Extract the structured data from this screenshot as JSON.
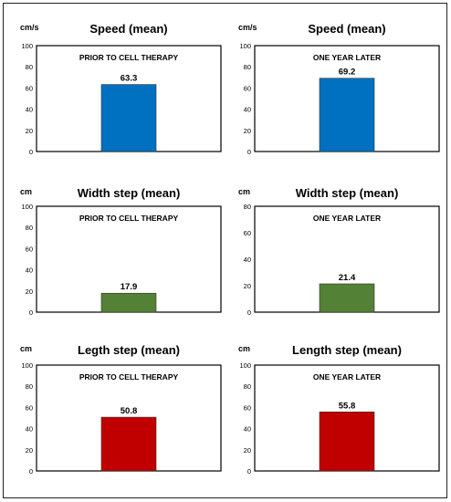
{
  "chart_data": [
    {
      "type": "bar",
      "title": "Speed (mean)",
      "unit": "cm/s",
      "subtitle": "PRIOR TO CELL THERAPY",
      "values": [
        63.3
      ],
      "labels": [
        "63.3"
      ],
      "ylim": [
        0,
        100
      ],
      "ticks": [
        0,
        20,
        40,
        60,
        80,
        100
      ],
      "color": "#0070C0"
    },
    {
      "type": "bar",
      "title": "Speed (mean)",
      "unit": "cm/s",
      "subtitle": "ONE YEAR LATER",
      "values": [
        69.2
      ],
      "labels": [
        "69.2"
      ],
      "ylim": [
        0,
        100
      ],
      "ticks": [
        0,
        20,
        40,
        60,
        80,
        100
      ],
      "color": "#0070C0"
    },
    {
      "type": "bar",
      "title": "Width step (mean)",
      "unit": "cm",
      "subtitle": "PRIOR TO CELL THERAPY",
      "values": [
        17.9
      ],
      "labels": [
        "17.9"
      ],
      "ylim": [
        0,
        100
      ],
      "ticks": [
        0,
        20,
        40,
        60,
        80,
        100
      ],
      "color": "#538135"
    },
    {
      "type": "bar",
      "title": "Width step (mean)",
      "unit": "cm",
      "subtitle": "ONE YEAR LATER",
      "values": [
        21.4
      ],
      "labels": [
        "21.4"
      ],
      "ylim": [
        0,
        80
      ],
      "ticks": [
        0,
        20,
        40,
        60,
        80
      ],
      "color": "#538135"
    },
    {
      "type": "bar",
      "title": "Legth step (mean)",
      "unit": "cm",
      "subtitle": "PRIOR TO CELL THERAPY",
      "values": [
        50.8
      ],
      "labels": [
        "50.8"
      ],
      "ylim": [
        0,
        100
      ],
      "ticks": [
        0,
        20,
        40,
        60,
        80,
        100
      ],
      "color": "#C00000"
    },
    {
      "type": "bar",
      "title": "Length step (mean)",
      "unit": "cm",
      "subtitle": "ONE YEAR LATER",
      "values": [
        55.8
      ],
      "labels": [
        "55.8"
      ],
      "ylim": [
        0,
        100
      ],
      "ticks": [
        0,
        20,
        40,
        60,
        80,
        100
      ],
      "color": "#C00000"
    }
  ]
}
